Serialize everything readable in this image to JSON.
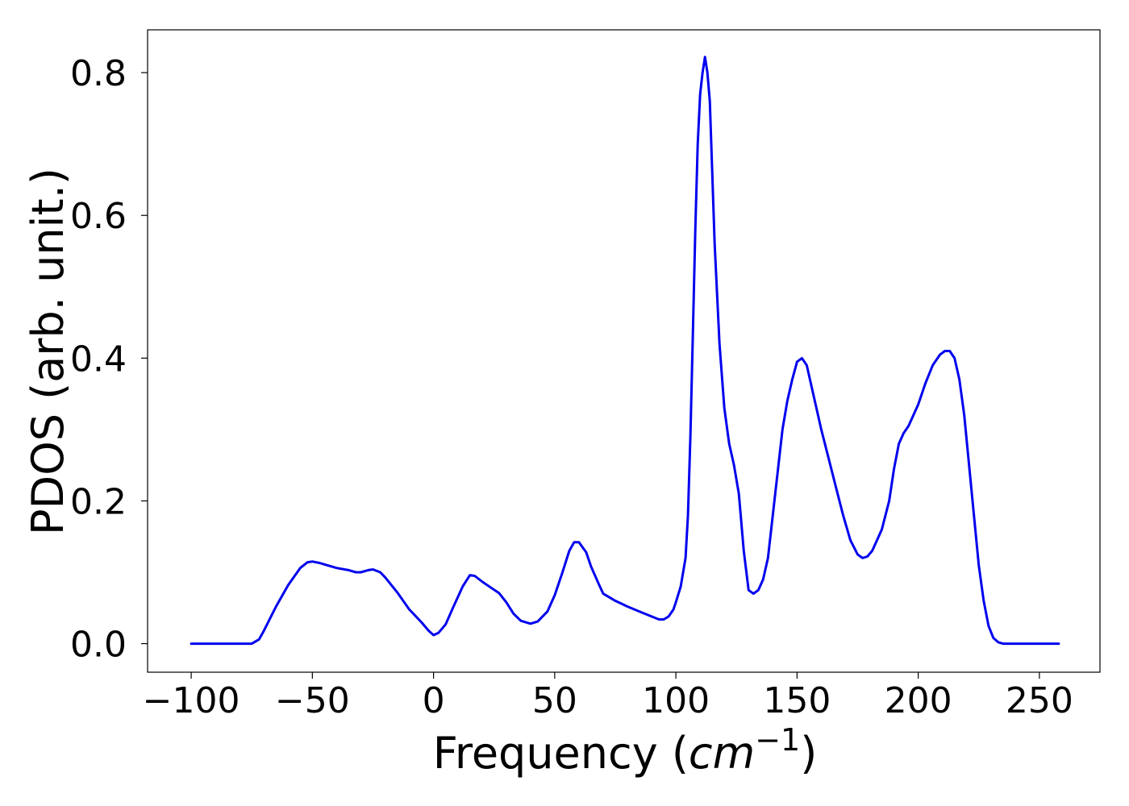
{
  "chart_data": {
    "type": "line",
    "title": "",
    "xlabel": "Frequency (",
    "xlabel_math_base": "cm",
    "xlabel_math_exponent": "−1",
    "xlabel_suffix": ")",
    "ylabel": "PDOS (arb. unit.)",
    "xlim": [
      -118,
      275
    ],
    "ylim": [
      -0.04,
      0.86
    ],
    "xticks": [
      -100,
      -50,
      0,
      50,
      100,
      150,
      200,
      250
    ],
    "xtick_labels": [
      "−100",
      "−50",
      "0",
      "50",
      "100",
      "150",
      "200",
      "250"
    ],
    "yticks": [
      0.0,
      0.2,
      0.4,
      0.6,
      0.8
    ],
    "ytick_labels": [
      "0.0",
      "0.2",
      "0.4",
      "0.6",
      "0.8"
    ],
    "grid": false,
    "series": [
      {
        "color": "#0000ee",
        "x": [
          -100,
          -90,
          -80,
          -75,
          -72,
          -70,
          -65,
          -60,
          -55,
          -52,
          -50,
          -47,
          -45,
          -40,
          -35,
          -32,
          -30,
          -27,
          -25,
          -22,
          -20,
          -15,
          -10,
          -5,
          -2,
          0,
          2,
          5,
          8,
          12,
          15,
          17,
          20,
          23,
          27,
          30,
          33,
          36,
          40,
          43,
          47,
          50,
          53,
          56,
          58,
          60,
          63,
          65,
          68,
          70,
          75,
          80,
          85,
          90,
          93,
          95,
          97,
          99,
          100,
          102,
          104,
          105,
          106,
          107,
          108,
          109,
          110,
          111,
          112,
          113,
          114,
          115,
          116,
          118,
          120,
          122,
          124,
          126,
          128,
          130,
          132,
          134,
          136,
          138,
          140,
          142,
          144,
          146,
          148,
          150,
          152,
          154,
          156,
          158,
          160,
          163,
          166,
          169,
          172,
          175,
          177,
          179,
          181,
          183,
          185,
          188,
          190,
          192,
          194,
          196,
          198,
          200,
          203,
          206,
          209,
          211,
          213,
          215,
          217,
          219,
          221,
          223,
          225,
          227,
          229,
          231,
          233,
          235,
          237,
          240,
          245,
          250,
          258
        ],
        "y": [
          0.0,
          0.0,
          0.0,
          0.0,
          0.006,
          0.018,
          0.052,
          0.082,
          0.106,
          0.114,
          0.115,
          0.113,
          0.111,
          0.106,
          0.103,
          0.1,
          0.1,
          0.103,
          0.104,
          0.1,
          0.093,
          0.072,
          0.048,
          0.03,
          0.018,
          0.012,
          0.015,
          0.027,
          0.05,
          0.08,
          0.096,
          0.095,
          0.087,
          0.08,
          0.071,
          0.058,
          0.042,
          0.032,
          0.028,
          0.031,
          0.045,
          0.068,
          0.098,
          0.13,
          0.142,
          0.142,
          0.128,
          0.108,
          0.085,
          0.07,
          0.06,
          0.052,
          0.045,
          0.038,
          0.034,
          0.034,
          0.038,
          0.048,
          0.058,
          0.08,
          0.12,
          0.18,
          0.29,
          0.43,
          0.58,
          0.7,
          0.77,
          0.8,
          0.822,
          0.8,
          0.76,
          0.66,
          0.56,
          0.42,
          0.33,
          0.28,
          0.25,
          0.21,
          0.13,
          0.075,
          0.07,
          0.075,
          0.09,
          0.12,
          0.18,
          0.24,
          0.3,
          0.34,
          0.37,
          0.395,
          0.4,
          0.39,
          0.36,
          0.33,
          0.3,
          0.26,
          0.22,
          0.18,
          0.145,
          0.125,
          0.12,
          0.122,
          0.13,
          0.145,
          0.16,
          0.2,
          0.245,
          0.28,
          0.295,
          0.305,
          0.32,
          0.335,
          0.365,
          0.39,
          0.405,
          0.41,
          0.41,
          0.4,
          0.37,
          0.32,
          0.25,
          0.18,
          0.11,
          0.06,
          0.025,
          0.008,
          0.002,
          0.0,
          0.0,
          0.0,
          0.0,
          0.0,
          0.0
        ]
      }
    ]
  }
}
